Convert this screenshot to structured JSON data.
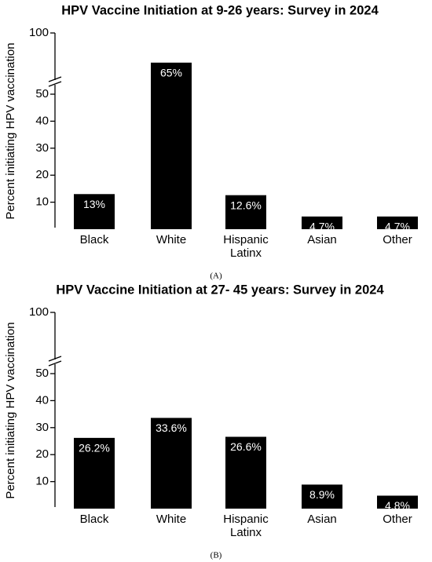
{
  "chart_data": [
    {
      "type": "bar",
      "title": "HPV Vaccine Initiation at 9-26 years: Survey in 2024",
      "ylabel": "Percent initiating HPV vaccination",
      "caption": "(A)",
      "categories": [
        "Black",
        "White",
        "Hispanic\nLatinx",
        "Asian",
        "Other"
      ],
      "values": [
        13,
        65,
        12.6,
        4.7,
        4.7
      ],
      "value_labels": [
        "13%",
        "65%",
        "12.6%",
        "4.7%",
        "4.7%"
      ],
      "color": "#000000",
      "ylim": [
        0,
        100
      ],
      "yticks": [
        10,
        20,
        30,
        40,
        50,
        100
      ],
      "y_break": 50
    },
    {
      "type": "bar",
      "title": "HPV Vaccine Initiation at 27- 45 years: Survey in 2024",
      "ylabel": "Percent initiating HPV vaccination",
      "caption": "(B)",
      "categories": [
        "Black",
        "White",
        "Hispanic\nLatinx",
        "Asian",
        "Other"
      ],
      "values": [
        26.2,
        33.6,
        26.6,
        8.9,
        4.8
      ],
      "value_labels": [
        "26.2%",
        "33.6%",
        "26.6%",
        "8.9%",
        "4.8%"
      ],
      "color": "#000000",
      "ylim": [
        0,
        100
      ],
      "yticks": [
        10,
        20,
        30,
        40,
        50,
        100
      ],
      "y_break": 50
    }
  ]
}
